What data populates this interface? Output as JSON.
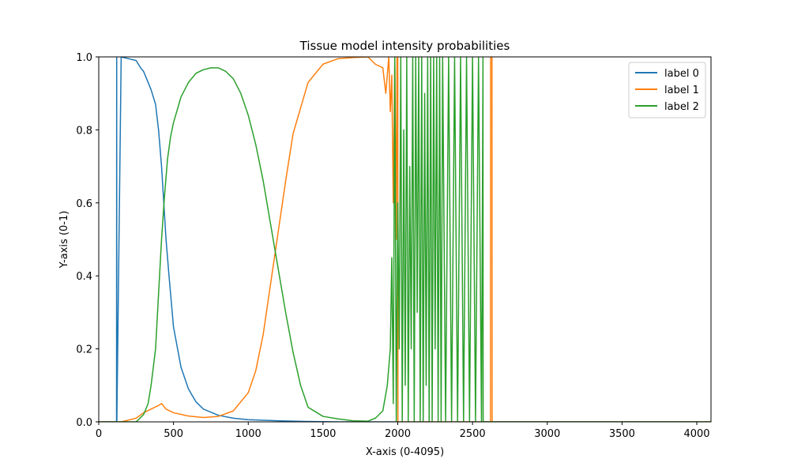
{
  "chart_data": {
    "type": "line",
    "title": "Tissue model intensity probabilities",
    "xlabel": "X-axis (0-4095)",
    "ylabel": "Y-axis (0-1)",
    "xlim": [
      0,
      4095
    ],
    "ylim": [
      0,
      1
    ],
    "xticks": [
      0,
      500,
      1000,
      1500,
      2000,
      2500,
      3000,
      3500,
      4000
    ],
    "yticks": [
      0.0,
      0.2,
      0.4,
      0.6,
      0.8,
      1.0
    ],
    "ytick_labels": [
      "0.0",
      "0.2",
      "0.4",
      "0.6",
      "0.8",
      "1.0"
    ],
    "grid": false,
    "legend_position": "top-right",
    "series": [
      {
        "name": "label 0",
        "color": "#1f77b4",
        "x": [
          0,
          119,
          120,
          121,
          150,
          200,
          250,
          280,
          300,
          320,
          350,
          380,
          400,
          420,
          450,
          470,
          500,
          550,
          600,
          650,
          700,
          800,
          900,
          1000,
          1200,
          1400,
          1600,
          1800,
          2000,
          2500,
          3000,
          4095
        ],
        "y": [
          0,
          0,
          1.0,
          0.0,
          1.0,
          0.995,
          0.99,
          0.97,
          0.96,
          0.94,
          0.91,
          0.87,
          0.8,
          0.7,
          0.5,
          0.4,
          0.26,
          0.15,
          0.09,
          0.055,
          0.035,
          0.018,
          0.01,
          0.006,
          0.003,
          0.001,
          0.0,
          0.0,
          0.0,
          0.0,
          0.0,
          0.0
        ]
      },
      {
        "name": "label 1",
        "color": "#ff7f0e",
        "x": [
          0,
          150,
          200,
          250,
          300,
          350,
          400,
          420,
          450,
          500,
          600,
          700,
          800,
          900,
          1000,
          1050,
          1100,
          1150,
          1200,
          1250,
          1300,
          1400,
          1500,
          1600,
          1700,
          1800,
          1850,
          1900,
          1920,
          1940,
          1950,
          1960,
          1970,
          1980,
          1990,
          1995,
          2000,
          2001,
          2300,
          2620,
          2621,
          2630,
          2631,
          3000,
          4095
        ],
        "y": [
          0,
          0,
          0.005,
          0.01,
          0.025,
          0.035,
          0.045,
          0.05,
          0.035,
          0.025,
          0.016,
          0.012,
          0.015,
          0.03,
          0.08,
          0.14,
          0.24,
          0.38,
          0.52,
          0.66,
          0.79,
          0.93,
          0.98,
          0.995,
          0.998,
          1.0,
          0.98,
          0.97,
          0.9,
          1.0,
          0.85,
          0.95,
          0.6,
          1.0,
          0.5,
          1.0,
          1.0,
          0.0,
          0.0,
          0.0,
          1.0,
          1.0,
          0.0,
          0.0,
          0.0
        ]
      },
      {
        "name": "label 2",
        "color": "#2ca02c",
        "x": [
          0,
          250,
          300,
          330,
          350,
          380,
          400,
          420,
          440,
          460,
          480,
          500,
          550,
          600,
          650,
          700,
          750,
          800,
          850,
          900,
          950,
          1000,
          1050,
          1100,
          1150,
          1200,
          1250,
          1300,
          1350,
          1400,
          1500,
          1600,
          1700,
          1800,
          1850,
          1900,
          1930,
          1950,
          1960,
          1970,
          1980,
          1990,
          2000,
          2010,
          2020,
          2030,
          2040,
          2050,
          2060,
          2070,
          2080,
          2090,
          2100,
          2110,
          2120,
          2130,
          2140,
          2150,
          2160,
          2170,
          2180,
          2190,
          2200,
          2210,
          2220,
          2230,
          2240,
          2250,
          2260,
          2270,
          2280,
          2290,
          2300,
          2320,
          2340,
          2360,
          2380,
          2400,
          2420,
          2440,
          2460,
          2480,
          2500,
          2520,
          2540,
          2560,
          2570,
          2571,
          3000,
          4095
        ],
        "y": [
          0,
          0,
          0.02,
          0.05,
          0.1,
          0.2,
          0.35,
          0.5,
          0.62,
          0.72,
          0.78,
          0.82,
          0.89,
          0.93,
          0.955,
          0.965,
          0.97,
          0.97,
          0.96,
          0.94,
          0.9,
          0.84,
          0.76,
          0.66,
          0.54,
          0.42,
          0.3,
          0.19,
          0.1,
          0.04,
          0.015,
          0.008,
          0.003,
          0.002,
          0.01,
          0.03,
          0.1,
          0.2,
          0.45,
          0.05,
          1.0,
          0.0,
          0.6,
          0.2,
          1.0,
          0.0,
          0.8,
          0.1,
          1.0,
          0.0,
          0.7,
          0.2,
          1.0,
          0.0,
          1.0,
          0.3,
          1.0,
          0.0,
          1.0,
          0.0,
          0.9,
          0.1,
          1.0,
          0.0,
          1.0,
          0.0,
          1.0,
          0.2,
          1.0,
          0.0,
          1.0,
          0.0,
          1.0,
          0.0,
          1.0,
          0.0,
          1.0,
          0.0,
          1.0,
          0.0,
          1.0,
          0.0,
          1.0,
          0.0,
          1.0,
          0.0,
          1.0,
          0.0,
          0.0,
          0.0
        ]
      }
    ]
  }
}
